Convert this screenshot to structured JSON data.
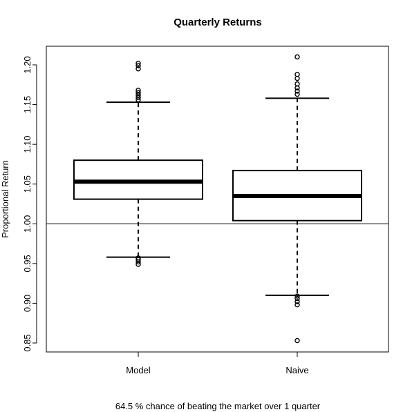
{
  "chart_data": {
    "type": "box",
    "title": "Quarterly Returns",
    "ylabel": "Proportional Return",
    "xlabel": "",
    "caption": "64.5 % chance of beating the market over 1 quarter",
    "categories": [
      "Model",
      "Naive"
    ],
    "ylim": [
      0.84,
      1.225
    ],
    "yticks": [
      0.85,
      0.9,
      0.95,
      1.0,
      1.05,
      1.1,
      1.15,
      1.2
    ],
    "ytick_labels": [
      "0.85",
      "0.90",
      "0.95",
      "1.00",
      "1.05",
      "1.10",
      "1.15",
      "1.20"
    ],
    "reference_line": 1.0,
    "grid": false,
    "boxes": [
      {
        "name": "Model",
        "whisker_low": 0.958,
        "q1": 1.031,
        "median": 1.053,
        "q3": 1.08,
        "whisker_high": 1.153,
        "outliers": [
          0.949,
          0.952,
          0.955,
          0.957,
          1.156,
          1.159,
          1.162,
          1.165,
          1.168,
          1.195,
          1.199,
          1.202
        ]
      },
      {
        "name": "Naive",
        "whisker_low": 0.91,
        "q1": 1.004,
        "median": 1.035,
        "q3": 1.067,
        "whisker_high": 1.158,
        "outliers": [
          0.853,
          0.898,
          0.902,
          0.906,
          0.909,
          1.163,
          1.167,
          1.171,
          1.176,
          1.183,
          1.188,
          1.21
        ]
      }
    ]
  }
}
